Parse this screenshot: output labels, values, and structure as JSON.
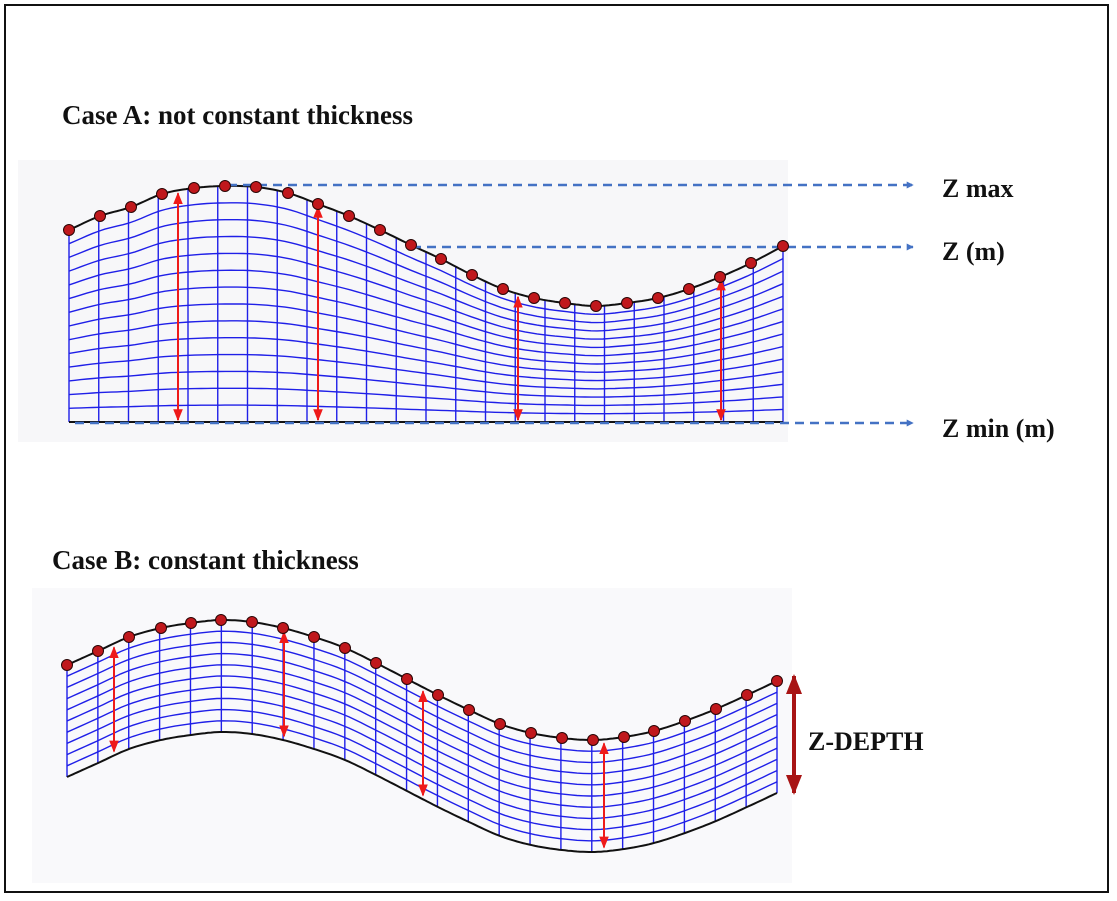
{
  "case_a": {
    "title_bold": "Case A",
    "title_rest": ": not constant thickness",
    "labels": {
      "z_max": "Z max",
      "z_m": "Z (m)",
      "z_min": "Z min (m)"
    }
  },
  "case_b": {
    "title_bold": "Case B",
    "title_rest": ": constant thickness",
    "labels": {
      "z_depth": "Z-DEPTH"
    }
  },
  "colors": {
    "grid": "#1f1fe8",
    "outline": "#111111",
    "control_point": "#c0181c",
    "thickness_arrow": "#ee1a1a",
    "depth_arrow": "#a81414",
    "guide_arrow": "#4472c4"
  }
}
